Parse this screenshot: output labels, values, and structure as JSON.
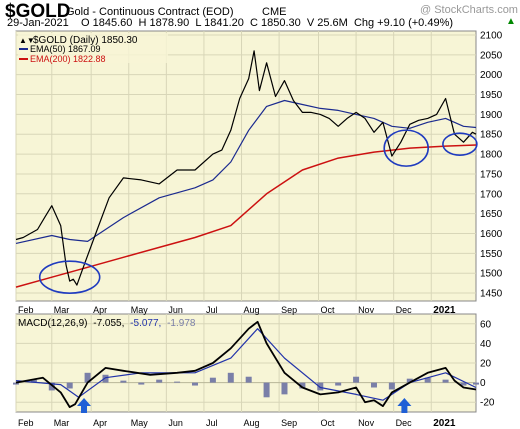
{
  "header": {
    "symbol": "$GOLD",
    "name": "Gold - Continuous Contract (EOD)",
    "exchange": "CME",
    "watermark": "@ StockCharts.com",
    "quote_line": "29-Jan-2021    O 1845.60  H 1878.90  L 1841.20  C 1850.30  V 25.6M  Chg +9.10 (+0.49%)",
    "quote_arrow": "▲"
  },
  "price_panel": {
    "legend_price": "$GOLD (Daily) 1850.30",
    "legend_ema50": "EMA(50) 1867.09",
    "legend_ema200": "EMA(200) 1822.88"
  },
  "macd_panel": {
    "legend_prefix": "MACD(12,26,9)",
    "legend_macd": "-7.055,",
    "legend_signal": "-5.077,",
    "legend_hist": "-1.978"
  },
  "colors": {
    "price_bg": "#f7f5d6",
    "price_line": "#000000",
    "ema50": "#1b2a8f",
    "ema200": "#cc1111",
    "macd_line": "#000000",
    "signal_line": "#2233aa",
    "histogram": "#7a7fa8",
    "circle": "#1f3bbf",
    "arrow": "#1f5fd6"
  },
  "chart_data": [
    {
      "type": "line",
      "title": "Gold - Continuous Contract (EOD)",
      "x_ticks": [
        "Feb",
        "Mar",
        "Apr",
        "May",
        "Jun",
        "Jul",
        "Aug",
        "Sep",
        "Oct",
        "Nov",
        "Dec",
        "2021"
      ],
      "y_ticks": [
        1450,
        1500,
        1550,
        1600,
        1650,
        1700,
        1750,
        1800,
        1850,
        1900,
        1950,
        2000,
        2050,
        2100
      ],
      "ylim": [
        1430,
        2110
      ],
      "grid": true,
      "legend_position": "top-left",
      "series": [
        {
          "name": "$GOLD (Daily)",
          "t": [
            0,
            4,
            8,
            12,
            16,
            20,
            25,
            28,
            30,
            32,
            34,
            38,
            45,
            52,
            60,
            70,
            80,
            90,
            100,
            110,
            115,
            120,
            125,
            130,
            133,
            136,
            140,
            145,
            150,
            155,
            160,
            165,
            170,
            175,
            180,
            185,
            190,
            195,
            200,
            205,
            210,
            215,
            220,
            225,
            230,
            235,
            240,
            245,
            250,
            252,
            255,
            257
          ],
          "values": [
            1585,
            1590,
            1600,
            1610,
            1640,
            1670,
            1620,
            1520,
            1480,
            1485,
            1470,
            1520,
            1605,
            1690,
            1740,
            1735,
            1725,
            1760,
            1760,
            1800,
            1810,
            1860,
            1940,
            1990,
            2060,
            1960,
            2030,
            1945,
            1985,
            1935,
            1905,
            1905,
            1900,
            1890,
            1870,
            1890,
            1905,
            1890,
            1855,
            1880,
            1795,
            1830,
            1875,
            1885,
            1890,
            1900,
            1940,
            1850,
            1830,
            1840,
            1855,
            1850
          ]
        },
        {
          "name": "EMA(50)",
          "t": [
            0,
            20,
            30,
            40,
            60,
            80,
            100,
            110,
            120,
            130,
            140,
            150,
            160,
            170,
            180,
            190,
            200,
            210,
            220,
            230,
            240,
            250,
            257
          ],
          "values": [
            1575,
            1595,
            1585,
            1580,
            1640,
            1690,
            1715,
            1735,
            1780,
            1860,
            1920,
            1935,
            1925,
            1915,
            1910,
            1900,
            1890,
            1870,
            1865,
            1880,
            1890,
            1870,
            1867
          ]
        },
        {
          "name": "EMA(200)",
          "t": [
            0,
            20,
            40,
            60,
            80,
            100,
            120,
            140,
            160,
            180,
            200,
            220,
            240,
            257
          ],
          "values": [
            1465,
            1490,
            1515,
            1540,
            1565,
            1590,
            1620,
            1700,
            1760,
            1790,
            1805,
            1815,
            1820,
            1823
          ]
        }
      ]
    },
    {
      "type": "line",
      "title": "MACD(12,26,9)",
      "x_ticks": [
        "Feb",
        "Mar",
        "Apr",
        "May",
        "Jun",
        "Jul",
        "Aug",
        "Sep",
        "Oct",
        "Nov",
        "Dec",
        "2021"
      ],
      "y_ticks": [
        -20,
        0,
        20,
        40,
        60
      ],
      "ylim": [
        -30,
        70
      ],
      "grid": true,
      "series": [
        {
          "name": "MACD",
          "t": [
            0,
            15,
            25,
            30,
            33,
            40,
            50,
            60,
            75,
            90,
            100,
            110,
            120,
            130,
            135,
            140,
            150,
            160,
            170,
            180,
            190,
            195,
            200,
            205,
            210,
            220,
            230,
            240,
            245,
            250,
            257
          ],
          "values": [
            0,
            5,
            -10,
            -25,
            -22,
            0,
            15,
            12,
            8,
            10,
            12,
            20,
            35,
            55,
            62,
            40,
            10,
            -5,
            -12,
            -10,
            -5,
            -20,
            -18,
            -24,
            -10,
            0,
            10,
            15,
            2,
            -5,
            -7
          ]
        },
        {
          "name": "Signal",
          "t": [
            0,
            25,
            35,
            50,
            70,
            100,
            120,
            135,
            150,
            170,
            190,
            205,
            220,
            240,
            257
          ],
          "values": [
            2,
            -2,
            -15,
            5,
            10,
            10,
            25,
            55,
            25,
            -5,
            -12,
            -18,
            0,
            10,
            -5
          ]
        },
        {
          "name": "Histogram",
          "t": [
            0,
            10,
            20,
            30,
            40,
            50,
            60,
            70,
            80,
            90,
            100,
            110,
            120,
            130,
            140,
            150,
            160,
            170,
            180,
            190,
            200,
            210,
            220,
            230,
            240,
            250,
            257
          ],
          "values": [
            -2,
            3,
            -8,
            -6,
            10,
            8,
            2,
            -2,
            3,
            1,
            -3,
            5,
            10,
            6,
            -15,
            -12,
            -6,
            -8,
            -3,
            6,
            -5,
            -7,
            4,
            5,
            3,
            -3,
            -2
          ]
        }
      ]
    }
  ]
}
